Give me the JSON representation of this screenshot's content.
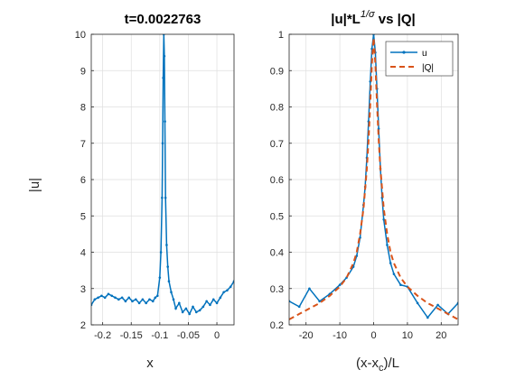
{
  "colors": {
    "blue": "#0072BD",
    "orange": "#D95319",
    "grid": "#dfdfdf",
    "axis": "#262626"
  },
  "chart_data": [
    {
      "type": "line",
      "title": "t=0.0022763",
      "xlabel": "x",
      "ylabel": "|u|",
      "xlim": [
        -0.22,
        0.03
      ],
      "ylim": [
        2,
        10
      ],
      "xticks": [
        -0.2,
        -0.15,
        -0.1,
        -0.05,
        0
      ],
      "xtick_labels": [
        "-0.2",
        "-0.15",
        "-0.1",
        "-0.05",
        "0"
      ],
      "yticks": [
        2,
        3,
        4,
        5,
        6,
        7,
        8,
        9,
        10
      ],
      "ytick_labels": [
        "2",
        "3",
        "4",
        "5",
        "6",
        "7",
        "8",
        "9",
        "10"
      ],
      "grid": true,
      "series": [
        {
          "x": [
            -0.22,
            -0.214,
            -0.208,
            -0.202,
            -0.196,
            -0.19,
            -0.184,
            -0.178,
            -0.172,
            -0.166,
            -0.16,
            -0.154,
            -0.148,
            -0.142,
            -0.136,
            -0.13,
            -0.124,
            -0.118,
            -0.112,
            -0.108,
            -0.104,
            -0.1,
            -0.098,
            -0.096,
            -0.095,
            -0.094,
            -0.093,
            -0.092,
            -0.091,
            -0.09,
            -0.088,
            -0.086,
            -0.084,
            -0.08,
            -0.076,
            -0.072,
            -0.066,
            -0.06,
            -0.054,
            -0.048,
            -0.042,
            -0.036,
            -0.03,
            -0.024,
            -0.018,
            -0.012,
            -0.006,
            0.0,
            0.006,
            0.012,
            0.018,
            0.024,
            0.03
          ],
          "y": [
            2.55,
            2.7,
            2.75,
            2.8,
            2.75,
            2.85,
            2.8,
            2.75,
            2.7,
            2.75,
            2.65,
            2.75,
            2.65,
            2.7,
            2.6,
            2.7,
            2.6,
            2.7,
            2.65,
            2.75,
            2.8,
            3.3,
            4.0,
            5.5,
            7.0,
            8.8,
            10.0,
            9.4,
            7.6,
            5.5,
            4.2,
            3.6,
            3.2,
            2.9,
            2.7,
            2.45,
            2.6,
            2.35,
            2.45,
            2.3,
            2.5,
            2.35,
            2.4,
            2.5,
            2.65,
            2.55,
            2.7,
            2.6,
            2.75,
            2.9,
            2.95,
            3.05,
            3.2
          ]
        }
      ]
    },
    {
      "type": "line",
      "title": "|u|*L",
      "title_sup": "1/σ",
      "title_rest": " vs |Q|",
      "xlabel": "(x-x",
      "xlabel_sub": "c",
      "xlabel_rest": ")/L",
      "xlim": [
        -25,
        25
      ],
      "ylim": [
        0.2,
        1
      ],
      "xticks": [
        -20,
        -10,
        0,
        10,
        20
      ],
      "xtick_labels": [
        "-20",
        "-10",
        "0",
        "10",
        "20"
      ],
      "yticks": [
        0.2,
        0.3,
        0.4,
        0.5,
        0.6,
        0.7,
        0.8,
        0.9,
        1
      ],
      "ytick_labels": [
        "0.2",
        "0.3",
        "0.4",
        "0.5",
        "0.6",
        "0.7",
        "0.8",
        "0.9",
        "1"
      ],
      "grid": true,
      "legend": {
        "position": "top-right",
        "entries": [
          "u",
          "|Q|"
        ]
      },
      "series": [
        {
          "name": "u",
          "style": "solid-dots",
          "x": [
            -25,
            -22,
            -19,
            -16,
            -13,
            -10,
            -8,
            -6,
            -5,
            -4,
            -3,
            -2.5,
            -2,
            -1.5,
            -1,
            -0.5,
            0,
            0.5,
            1,
            1.5,
            2,
            2.5,
            3,
            4,
            5,
            6,
            8,
            10,
            13,
            16,
            19,
            22,
            25
          ],
          "y": [
            0.265,
            0.25,
            0.3,
            0.265,
            0.285,
            0.31,
            0.33,
            0.36,
            0.39,
            0.44,
            0.53,
            0.58,
            0.66,
            0.76,
            0.87,
            0.96,
            1.0,
            0.95,
            0.85,
            0.74,
            0.63,
            0.55,
            0.49,
            0.42,
            0.37,
            0.34,
            0.31,
            0.305,
            0.26,
            0.22,
            0.255,
            0.23,
            0.26
          ]
        },
        {
          "name": "|Q|",
          "style": "dashed",
          "x": [
            -25,
            -22,
            -19,
            -16,
            -13,
            -10,
            -8,
            -6,
            -5,
            -4,
            -3,
            -2,
            -1.5,
            -1,
            -0.5,
            0,
            0.5,
            1,
            1.5,
            2,
            3,
            4,
            5,
            6,
            8,
            10,
            13,
            16,
            19,
            22,
            25
          ],
          "y": [
            0.215,
            0.23,
            0.245,
            0.26,
            0.28,
            0.305,
            0.33,
            0.37,
            0.4,
            0.45,
            0.52,
            0.63,
            0.71,
            0.81,
            0.92,
            0.99,
            0.92,
            0.81,
            0.71,
            0.63,
            0.52,
            0.45,
            0.4,
            0.37,
            0.33,
            0.305,
            0.28,
            0.26,
            0.245,
            0.23,
            0.215
          ]
        }
      ]
    }
  ]
}
